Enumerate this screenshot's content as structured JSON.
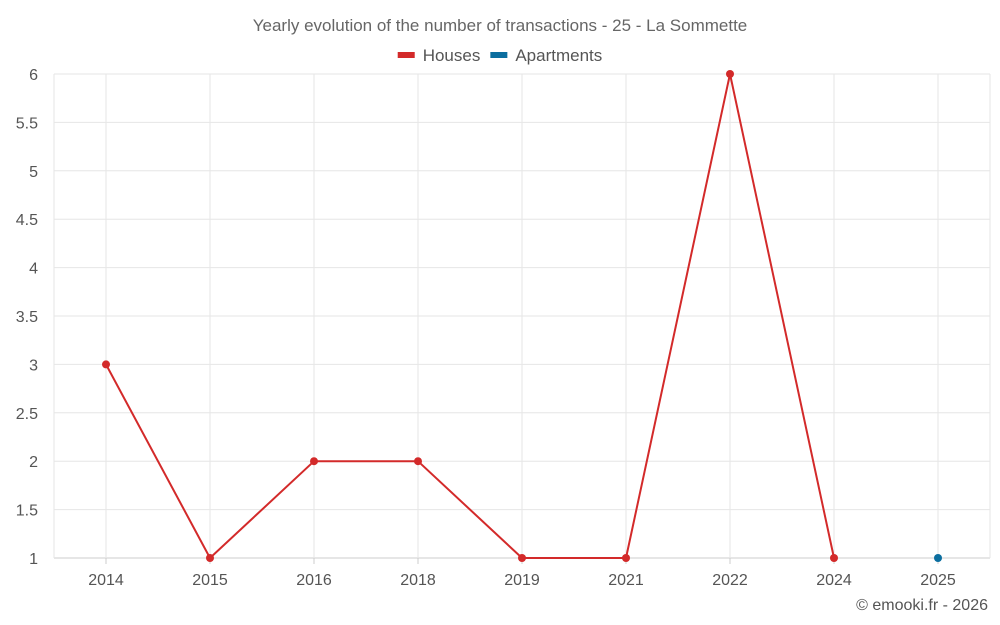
{
  "chart_data": {
    "type": "line",
    "title": "Yearly evolution of the number of transactions - 25 - La Sommette",
    "categories": [
      "2014",
      "2015",
      "2016",
      "2018",
      "2019",
      "2021",
      "2022",
      "2024",
      "2025"
    ],
    "series": [
      {
        "name": "Houses",
        "color": "#d32a2a",
        "values": [
          3,
          1,
          2,
          2,
          1,
          1,
          6,
          1,
          null
        ]
      },
      {
        "name": "Apartments",
        "color": "#0b6e9f",
        "values": [
          null,
          null,
          null,
          null,
          null,
          null,
          null,
          null,
          1
        ]
      }
    ],
    "y_ticks": [
      "1",
      "1.5",
      "2",
      "2.5",
      "3",
      "3.5",
      "4",
      "4.5",
      "5",
      "5.5",
      "6"
    ],
    "ylim": [
      1,
      6
    ],
    "xlabel": "",
    "ylabel": "",
    "grid": true,
    "legend_position": "top-center"
  },
  "credit": "© emooki.fr - 2026"
}
